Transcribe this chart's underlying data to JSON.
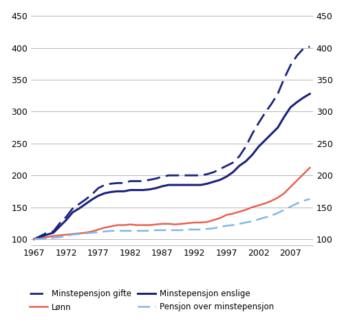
{
  "years": [
    1967,
    1968,
    1969,
    1970,
    1971,
    1972,
    1973,
    1974,
    1975,
    1976,
    1977,
    1978,
    1979,
    1980,
    1981,
    1982,
    1983,
    1984,
    1985,
    1986,
    1987,
    1988,
    1989,
    1990,
    1991,
    1992,
    1993,
    1994,
    1995,
    1996,
    1997,
    1998,
    1999,
    2000,
    2001,
    2002,
    2003,
    2004,
    2005,
    2006,
    2007,
    2008,
    2009,
    2010
  ],
  "minstepensjon_gifte": [
    100,
    105,
    110,
    112,
    125,
    135,
    148,
    155,
    162,
    170,
    180,
    185,
    187,
    188,
    188,
    191,
    191,
    191,
    193,
    195,
    198,
    200,
    200,
    200,
    200,
    200,
    200,
    202,
    205,
    210,
    215,
    220,
    230,
    245,
    265,
    282,
    298,
    312,
    328,
    352,
    373,
    388,
    399,
    402
  ],
  "minstepensjon_enslige": [
    100,
    103,
    107,
    110,
    120,
    130,
    142,
    148,
    155,
    162,
    168,
    172,
    174,
    175,
    175,
    177,
    177,
    177,
    178,
    180,
    183,
    185,
    185,
    185,
    185,
    185,
    185,
    187,
    190,
    193,
    198,
    205,
    215,
    222,
    232,
    245,
    255,
    265,
    275,
    292,
    307,
    315,
    322,
    328
  ],
  "lonn": [
    100,
    101,
    103,
    105,
    106,
    107,
    108,
    109,
    110,
    112,
    115,
    118,
    120,
    122,
    122,
    123,
    122,
    122,
    122,
    123,
    124,
    124,
    123,
    124,
    125,
    126,
    126,
    127,
    130,
    133,
    138,
    140,
    143,
    146,
    150,
    153,
    156,
    160,
    165,
    172,
    182,
    192,
    202,
    212
  ],
  "pensjon_over_minstepensjon": [
    100,
    100,
    101,
    102,
    103,
    105,
    107,
    108,
    109,
    110,
    111,
    112,
    113,
    113,
    113,
    113,
    113,
    113,
    113,
    114,
    114,
    114,
    114,
    114,
    115,
    115,
    115,
    116,
    117,
    119,
    121,
    122,
    124,
    126,
    128,
    131,
    134,
    137,
    141,
    146,
    151,
    156,
    160,
    163
  ],
  "color_minstepensjon_gifte": "#1a237e",
  "color_minstepensjon_enslige": "#1a237e",
  "color_lonn": "#e8604c",
  "color_pensjon_over_minstepensjon": "#7eb8e8",
  "ylim": [
    90,
    460
  ],
  "yticks": [
    100,
    150,
    200,
    250,
    300,
    350,
    400,
    450
  ],
  "xticks": [
    1967,
    1972,
    1977,
    1982,
    1987,
    1992,
    1997,
    2002,
    2007
  ],
  "legend_items": [
    {
      "label": "Minstepensjon gifte",
      "color": "#1a237e",
      "linestyle": "--"
    },
    {
      "label": "Lønn",
      "color": "#e8604c",
      "linestyle": "-"
    },
    {
      "label": "Minstepensjon enslige",
      "color": "#1a237e",
      "linestyle": "-"
    },
    {
      "label": "Pensjon over minstepensjon",
      "color": "#7eb8e8",
      "linestyle": "--"
    }
  ],
  "xlim": [
    1966.5,
    2010.5
  ]
}
